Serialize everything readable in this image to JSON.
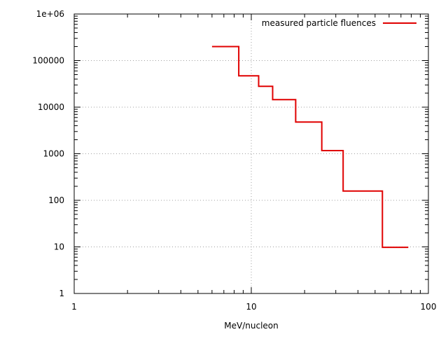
{
  "chart_data": {
    "type": "line",
    "step": true,
    "title": "",
    "xlabel": "MeV/nucleon",
    "ylabel": "",
    "x_scale": "log",
    "y_scale": "log",
    "xlim": [
      1,
      100
    ],
    "ylim": [
      1,
      1000000
    ],
    "x_ticks": [
      {
        "value": 1,
        "label": "1"
      },
      {
        "value": 10,
        "label": "10"
      },
      {
        "value": 100,
        "label": "100"
      }
    ],
    "y_ticks": [
      {
        "value": 1,
        "label": "1"
      },
      {
        "value": 10,
        "label": "10"
      },
      {
        "value": 100,
        "label": "100"
      },
      {
        "value": 1000,
        "label": "1000"
      },
      {
        "value": 10000,
        "label": "10000"
      },
      {
        "value": 100000,
        "label": "100000"
      },
      {
        "value": 1000000,
        "label": "1e+06"
      }
    ],
    "grid": true,
    "legend_position": "top-right",
    "series": [
      {
        "name": "measured particle fluences",
        "color": "#e00000",
        "points": [
          {
            "x": 6.0,
            "y": 200000
          },
          {
            "x": 8.5,
            "y": 200000
          },
          {
            "x": 8.5,
            "y": 47000
          },
          {
            "x": 11.0,
            "y": 47000
          },
          {
            "x": 11.0,
            "y": 28000
          },
          {
            "x": 13.2,
            "y": 28000
          },
          {
            "x": 13.2,
            "y": 14500
          },
          {
            "x": 17.8,
            "y": 14500
          },
          {
            "x": 17.8,
            "y": 4800
          },
          {
            "x": 25.0,
            "y": 4800
          },
          {
            "x": 25.0,
            "y": 1170
          },
          {
            "x": 33.0,
            "y": 1170
          },
          {
            "x": 33.0,
            "y": 158
          },
          {
            "x": 55.0,
            "y": 158
          },
          {
            "x": 55.0,
            "y": 9.8
          },
          {
            "x": 77.0,
            "y": 9.8
          }
        ]
      }
    ]
  }
}
